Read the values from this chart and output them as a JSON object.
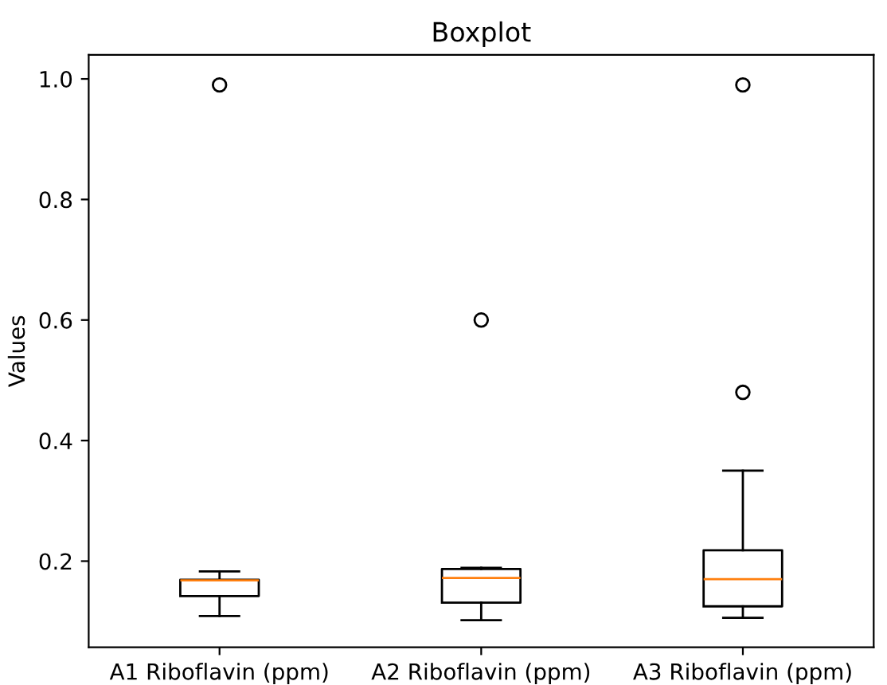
{
  "chart_data": {
    "type": "box",
    "title": "Boxplot",
    "ylabel": "Values",
    "categories": [
      "A1 Riboflavin (ppm)",
      "A2 Riboflavin (ppm)",
      "A3 Riboflavin (ppm)"
    ],
    "boxes": [
      {
        "low": 0.109,
        "q1": 0.142,
        "median": 0.168,
        "q3": 0.169,
        "high": 0.183,
        "outliers": [
          0.99
        ]
      },
      {
        "low": 0.102,
        "q1": 0.131,
        "median": 0.172,
        "q3": 0.187,
        "high": 0.189,
        "outliers": [
          0.6
        ]
      },
      {
        "low": 0.106,
        "q1": 0.125,
        "median": 0.17,
        "q3": 0.218,
        "high": 0.35,
        "outliers": [
          0.99,
          0.48
        ]
      }
    ],
    "ylim": [
      0.057,
      1.04
    ],
    "yticks": [
      0.2,
      0.4,
      0.6,
      0.8,
      {
        "value": 1.0,
        "label": "1.0"
      }
    ],
    "grid": false
  }
}
